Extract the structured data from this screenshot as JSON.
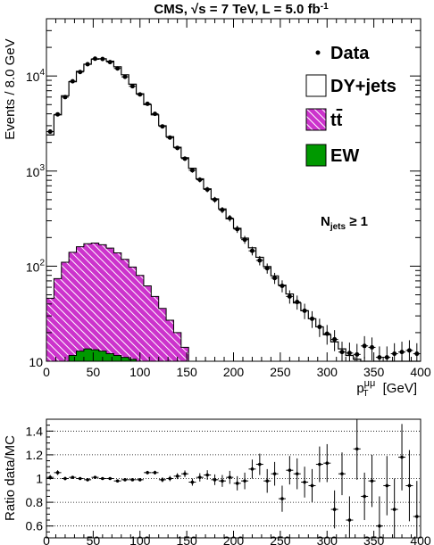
{
  "chart_data": [
    {
      "type": "histogram",
      "title": "CMS, √s = 7 TeV, L = 5.0 fb",
      "title_sup": "-1",
      "xlabel": "p",
      "xlabel_sup": "μμ",
      "xlabel_sub": "T",
      "xlabel_unit": "[GeV]",
      "ylabel": "Events / 8.0 GeV",
      "xlim": [
        0,
        400
      ],
      "ylim": [
        10,
        40000
      ],
      "yscale": "log",
      "bin_width": 8,
      "x_ticks": [
        "0",
        "50",
        "100",
        "150",
        "200",
        "250",
        "300",
        "350",
        "400"
      ],
      "y_ticks": [
        {
          "base": "10",
          "exp": ""
        },
        {
          "base": "10",
          "exp": "2"
        },
        {
          "base": "10",
          "exp": "3"
        },
        {
          "base": "10",
          "exp": "4"
        }
      ],
      "annotation": {
        "main": "N",
        "sub": "jets",
        "rest": " ≥ 1"
      },
      "legend_placement": "top-right",
      "legend": [
        {
          "label": "Data",
          "style": "marker"
        },
        {
          "label": "DY+jets",
          "style": "box"
        },
        {
          "label": "t",
          "overline_suffix": "t",
          "style": "hatched"
        },
        {
          "label": "EW",
          "style": "filled"
        }
      ],
      "colors": {
        "ttbar": "#cc33cc",
        "ew": "#009900",
        "dy": "#000000",
        "data": "#000000"
      },
      "series": [
        {
          "name": "DY+jets",
          "values": [
            2400,
            3900,
            6200,
            8700,
            11200,
            13300,
            15000,
            15200,
            14300,
            12500,
            10300,
            8200,
            6500,
            5000,
            3900,
            3000,
            2300,
            1780,
            1380,
            1070,
            830,
            650,
            510,
            400,
            315,
            250,
            197,
            156,
            124,
            99,
            79,
            63,
            51,
            41,
            34,
            28,
            23,
            19,
            16,
            13.5,
            11.5,
            10.5,
            10,
            10,
            10,
            10,
            10,
            10,
            10,
            10
          ]
        },
        {
          "name": "tt",
          "values": [
            46,
            74,
            110,
            140,
            160,
            172,
            175,
            168,
            155,
            138,
            118,
            98,
            80,
            62,
            48,
            36,
            27,
            20,
            14,
            10
          ]
        },
        {
          "name": "EW",
          "values": [
            10,
            10,
            10,
            11.5,
            12.8,
            13.5,
            13.2,
            12.8,
            12,
            11.5,
            11,
            10.5,
            10
          ]
        },
        {
          "name": "Data",
          "x": [
            4,
            12,
            20,
            28,
            36,
            44,
            52,
            60,
            68,
            76,
            84,
            92,
            100,
            108,
            116,
            124,
            132,
            140,
            148,
            156,
            164,
            172,
            180,
            188,
            196,
            204,
            212,
            220,
            228,
            236,
            244,
            252,
            260,
            268,
            276,
            284,
            292,
            300,
            308,
            316,
            324,
            332,
            340,
            348,
            356,
            364,
            372,
            380,
            388,
            396
          ],
          "values": [
            2600,
            3950,
            6000,
            8800,
            11000,
            13300,
            15200,
            15100,
            14000,
            12000,
            9800,
            7800,
            6400,
            5100,
            4000,
            2950,
            2250,
            1750,
            1350,
            1020,
            810,
            640,
            500,
            390,
            320,
            245,
            190,
            145,
            115,
            95,
            75,
            62,
            48,
            42,
            34,
            28,
            23,
            19.5,
            17,
            12.5,
            12.2,
            11.8,
            14.5,
            14,
            11,
            11,
            12,
            12.5,
            13,
            12
          ]
        }
      ]
    },
    {
      "type": "scatter",
      "ylabel": "Ratio data/MC",
      "xlim": [
        0,
        400
      ],
      "ylim": [
        0.5,
        1.5
      ],
      "grid": "horizontal-dotted",
      "x_ticks": [
        "0",
        "50",
        "100",
        "150",
        "200",
        "250",
        "300",
        "350",
        "400"
      ],
      "y_ticks": [
        "0.6",
        "0.8",
        "1",
        "1.2",
        "1.4"
      ],
      "series": [
        {
          "name": "Ratio",
          "x": [
            4,
            12,
            20,
            28,
            36,
            44,
            52,
            60,
            68,
            76,
            84,
            92,
            100,
            108,
            116,
            124,
            132,
            140,
            148,
            156,
            164,
            172,
            180,
            188,
            196,
            204,
            212,
            220,
            228,
            236,
            244,
            252,
            260,
            268,
            276,
            284,
            292,
            300,
            308,
            316,
            324,
            332,
            340,
            348,
            356,
            364,
            372,
            380,
            388,
            396
          ],
          "values": [
            1.01,
            1.05,
            1.0,
            1.01,
            1.0,
            0.99,
            1.01,
            1.0,
            1.0,
            0.98,
            0.99,
            0.99,
            0.99,
            1.05,
            1.05,
            0.99,
            1.0,
            1.02,
            1.04,
            0.97,
            1.01,
            1.03,
            0.99,
            0.98,
            1.01,
            0.96,
            0.98,
            1.08,
            1.12,
            0.98,
            1.04,
            0.83,
            1.07,
            1.04,
            0.97,
            0.94,
            1.12,
            1.13,
            0.74,
            1.04,
            0.65,
            1.25,
            0.85,
            0.98,
            0.6,
            0.94,
            0.74,
            1.18,
            0.94,
            0.68
          ],
          "errors": [
            0.02,
            0.02,
            0.015,
            0.012,
            0.012,
            0.01,
            0.01,
            0.01,
            0.01,
            0.01,
            0.012,
            0.012,
            0.013,
            0.015,
            0.016,
            0.02,
            0.022,
            0.025,
            0.028,
            0.03,
            0.035,
            0.04,
            0.045,
            0.05,
            0.055,
            0.06,
            0.07,
            0.08,
            0.09,
            0.1,
            0.1,
            0.11,
            0.12,
            0.13,
            0.13,
            0.14,
            0.15,
            0.16,
            0.16,
            0.18,
            0.2,
            0.26,
            0.2,
            0.22,
            0.25,
            0.25,
            0.26,
            0.28,
            0.3,
            0.3
          ]
        }
      ]
    }
  ]
}
